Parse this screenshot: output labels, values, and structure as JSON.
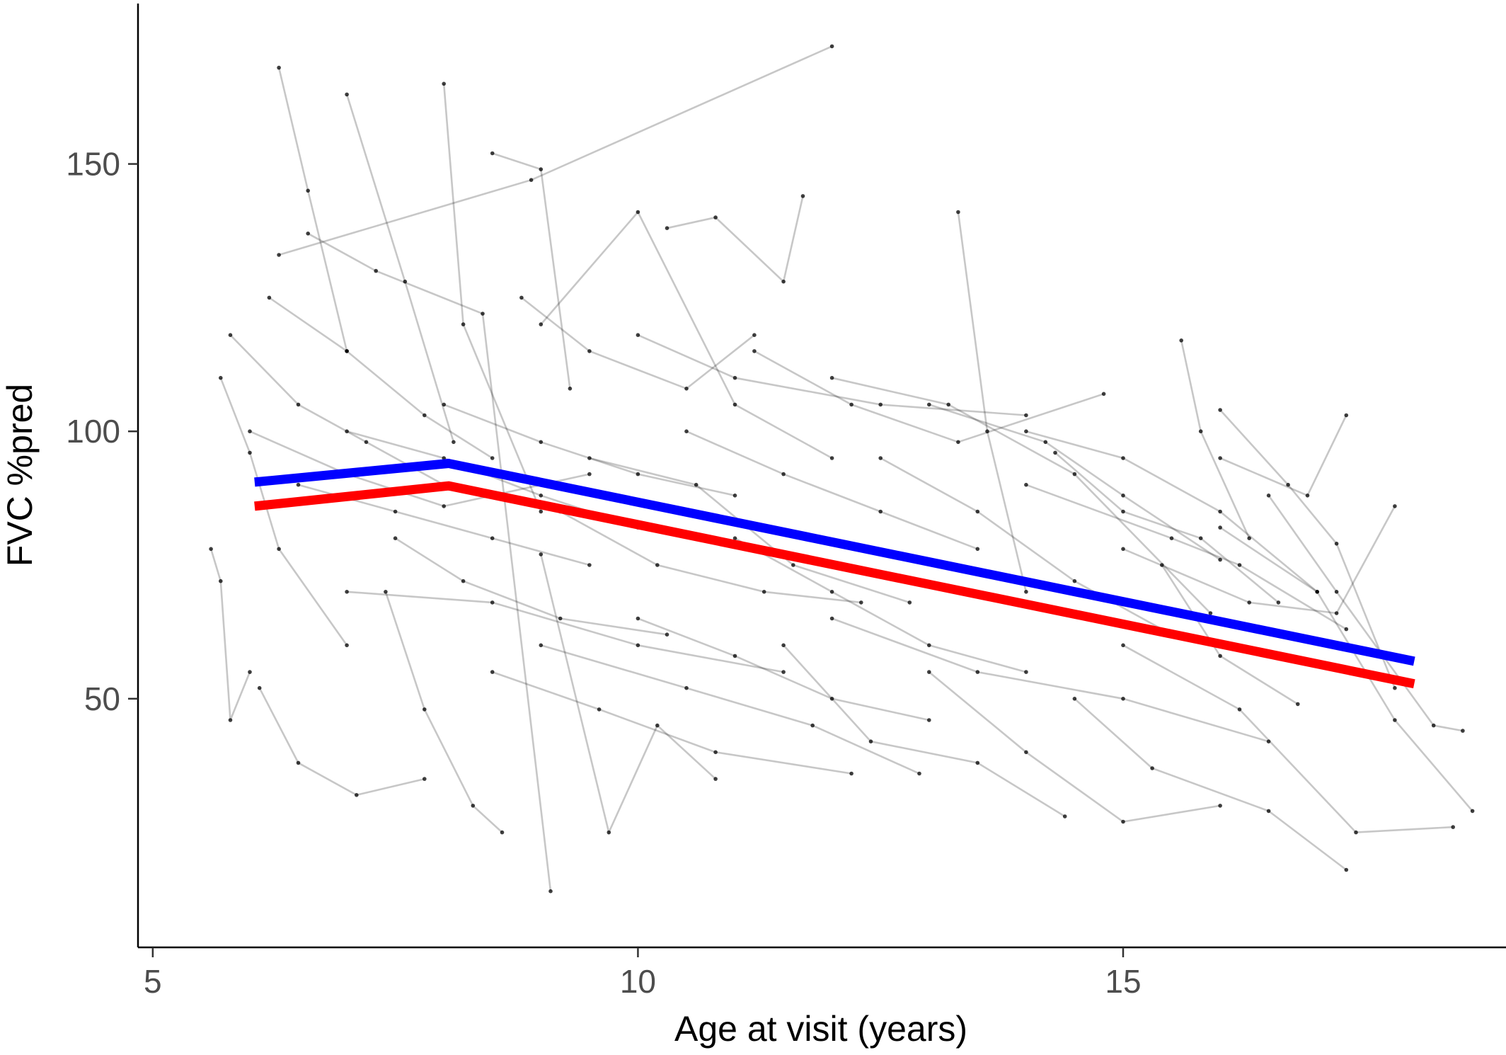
{
  "chart_data": {
    "type": "line",
    "title": "",
    "xlabel": "Age at visit (years)",
    "ylabel": "FVC %pred",
    "xlim": [
      4.95,
      18.8
    ],
    "ylim": [
      3.5,
      180
    ],
    "x_ticks": [
      5,
      10,
      15
    ],
    "x_tick_labels": [
      "5",
      "10",
      "15"
    ],
    "y_ticks": [
      50,
      100,
      150
    ],
    "y_tick_labels": [
      "50",
      "100",
      "150"
    ],
    "grid": false,
    "legend": "none",
    "individual_trajectories": {
      "note_color": "#000000",
      "color": "#000000",
      "description": "Many individual patient trajectories (grey connected lines with black points); representative subset",
      "series": [
        {
          "x": [
            6.3,
            8.9,
            12.0
          ],
          "y": [
            133,
            147,
            172
          ]
        },
        {
          "x": [
            6.3,
            6.6,
            7.0
          ],
          "y": [
            168,
            145,
            115
          ]
        },
        {
          "x": [
            7.0,
            7.6,
            8.1
          ],
          "y": [
            163,
            128,
            98
          ]
        },
        {
          "x": [
            8.0,
            8.2,
            9.0
          ],
          "y": [
            165,
            120,
            85
          ]
        },
        {
          "x": [
            8.5,
            9.0,
            9.3
          ],
          "y": [
            152,
            149,
            108
          ]
        },
        {
          "x": [
            6.6,
            7.3,
            8.4,
            9.1
          ],
          "y": [
            137,
            130,
            122,
            14
          ]
        },
        {
          "x": [
            9.0,
            10.0,
            11.0,
            12.0
          ],
          "y": [
            120,
            141,
            105,
            95
          ]
        },
        {
          "x": [
            10.3,
            10.8,
            11.5,
            11.7
          ],
          "y": [
            138,
            140,
            128,
            144
          ]
        },
        {
          "x": [
            13.3,
            13.6,
            14.0
          ],
          "y": [
            141,
            100,
            70
          ]
        },
        {
          "x": [
            15.6,
            15.8,
            16.3
          ],
          "y": [
            117,
            100,
            80
          ]
        },
        {
          "x": [
            12.0,
            13.2,
            14.5,
            15.9
          ],
          "y": [
            110,
            105,
            92,
            66
          ]
        },
        {
          "x": [
            5.7,
            6.0,
            6.3,
            7.0
          ],
          "y": [
            110,
            96,
            78,
            60
          ]
        },
        {
          "x": [
            5.6,
            5.7,
            5.8,
            6.0
          ],
          "y": [
            78,
            72,
            46,
            55
          ]
        },
        {
          "x": [
            6.1,
            6.5,
            7.1,
            7.8
          ],
          "y": [
            52,
            38,
            32,
            35
          ]
        },
        {
          "x": [
            7.4,
            7.8,
            8.3,
            8.6
          ],
          "y": [
            70,
            48,
            30,
            25
          ]
        },
        {
          "x": [
            9.0,
            9.7,
            10.2,
            10.8
          ],
          "y": [
            77,
            25,
            45,
            35
          ]
        },
        {
          "x": [
            11.5,
            12.4,
            13.5,
            14.4
          ],
          "y": [
            60,
            42,
            38,
            28
          ]
        },
        {
          "x": [
            13.0,
            14.0,
            15.0,
            16.0
          ],
          "y": [
            55,
            40,
            27,
            30
          ]
        },
        {
          "x": [
            14.5,
            15.3,
            16.5,
            17.3
          ],
          "y": [
            50,
            37,
            29,
            18
          ]
        },
        {
          "x": [
            15.0,
            16.2,
            17.4,
            18.4
          ],
          "y": [
            60,
            48,
            25,
            26
          ]
        },
        {
          "x": [
            16.0,
            17.0,
            17.8,
            18.6
          ],
          "y": [
            82,
            70,
            46,
            29
          ]
        },
        {
          "x": [
            14.0,
            15.5,
            16.2,
            17.3
          ],
          "y": [
            90,
            80,
            75,
            63
          ]
        },
        {
          "x": [
            15.0,
            16.3,
            17.2,
            17.8
          ],
          "y": [
            78,
            68,
            66,
            86
          ]
        },
        {
          "x": [
            16.0,
            16.7,
            17.2,
            17.8
          ],
          "y": [
            104,
            90,
            79,
            52
          ]
        },
        {
          "x": [
            10.5,
            11.5,
            12.5,
            13.5
          ],
          "y": [
            100,
            92,
            85,
            78
          ]
        },
        {
          "x": [
            9.5,
            10.6,
            11.6,
            12.8
          ],
          "y": [
            95,
            90,
            75,
            68
          ]
        },
        {
          "x": [
            8.0,
            9.0,
            10.0,
            11.0
          ],
          "y": [
            105,
            98,
            92,
            88
          ]
        },
        {
          "x": [
            7.0,
            8.0,
            9.0,
            10.0
          ],
          "y": [
            100,
            95,
            88,
            82
          ]
        },
        {
          "x": [
            6.5,
            7.5,
            8.5,
            9.5
          ],
          "y": [
            90,
            85,
            80,
            75
          ]
        },
        {
          "x": [
            7.0,
            8.5,
            10.0,
            11.5
          ],
          "y": [
            70,
            68,
            60,
            55
          ]
        },
        {
          "x": [
            11.0,
            12.0,
            13.0,
            14.0
          ],
          "y": [
            80,
            70,
            60,
            55
          ]
        },
        {
          "x": [
            12.5,
            13.5,
            14.5,
            15.5
          ],
          "y": [
            95,
            85,
            72,
            62
          ]
        },
        {
          "x": [
            13.0,
            14.2,
            15.0,
            16.0
          ],
          "y": [
            105,
            98,
            88,
            76
          ]
        },
        {
          "x": [
            14.0,
            15.0,
            16.0,
            17.0
          ],
          "y": [
            100,
            95,
            85,
            70
          ]
        },
        {
          "x": [
            16.0,
            16.9,
            17.3
          ],
          "y": [
            95,
            88,
            103
          ]
        },
        {
          "x": [
            15.4,
            16.0,
            16.8
          ],
          "y": [
            75,
            58,
            49
          ]
        },
        {
          "x": [
            10.0,
            11.0,
            12.0,
            13.0
          ],
          "y": [
            65,
            58,
            50,
            46
          ]
        },
        {
          "x": [
            9.0,
            10.5,
            11.8,
            12.9
          ],
          "y": [
            60,
            52,
            45,
            36
          ]
        },
        {
          "x": [
            8.5,
            9.6,
            10.8,
            12.2
          ],
          "y": [
            55,
            48,
            40,
            36
          ]
        },
        {
          "x": [
            12.0,
            13.5,
            15.0,
            16.5
          ],
          "y": [
            65,
            55,
            50,
            42
          ]
        },
        {
          "x": [
            6.0,
            7.0,
            8.0,
            9.5
          ],
          "y": [
            100,
            92,
            86,
            92
          ]
        },
        {
          "x": [
            5.8,
            6.5,
            7.2,
            8.0
          ],
          "y": [
            118,
            105,
            98,
            90
          ]
        },
        {
          "x": [
            6.2,
            7.0,
            7.8,
            8.5
          ],
          "y": [
            125,
            115,
            103,
            95
          ]
        },
        {
          "x": [
            8.8,
            9.5,
            10.5,
            11.2
          ],
          "y": [
            125,
            115,
            108,
            118
          ]
        },
        {
          "x": [
            10.0,
            11.0,
            12.5,
            14.0
          ],
          "y": [
            118,
            110,
            105,
            103
          ]
        },
        {
          "x": [
            11.2,
            12.2,
            13.3,
            14.8
          ],
          "y": [
            115,
            105,
            98,
            107
          ]
        },
        {
          "x": [
            14.3,
            15.0,
            15.8,
            16.6
          ],
          "y": [
            96,
            85,
            80,
            68
          ]
        },
        {
          "x": [
            16.5,
            17.2,
            18.2,
            18.5
          ],
          "y": [
            88,
            70,
            45,
            44
          ]
        },
        {
          "x": [
            7.5,
            8.2,
            9.2,
            10.3
          ],
          "y": [
            80,
            72,
            65,
            62
          ]
        },
        {
          "x": [
            9.2,
            10.2,
            11.3,
            12.3
          ],
          "y": [
            85,
            75,
            70,
            68
          ]
        }
      ]
    },
    "series": [
      {
        "color": "#0000ff",
        "x": [
          6.05,
          8.05,
          18.0
        ],
        "y": [
          90.5,
          94,
          57
        ]
      },
      {
        "color": "#ff0000",
        "x": [
          6.05,
          8.05,
          18.0
        ],
        "y": [
          86,
          89.8,
          52.8
        ]
      }
    ]
  }
}
